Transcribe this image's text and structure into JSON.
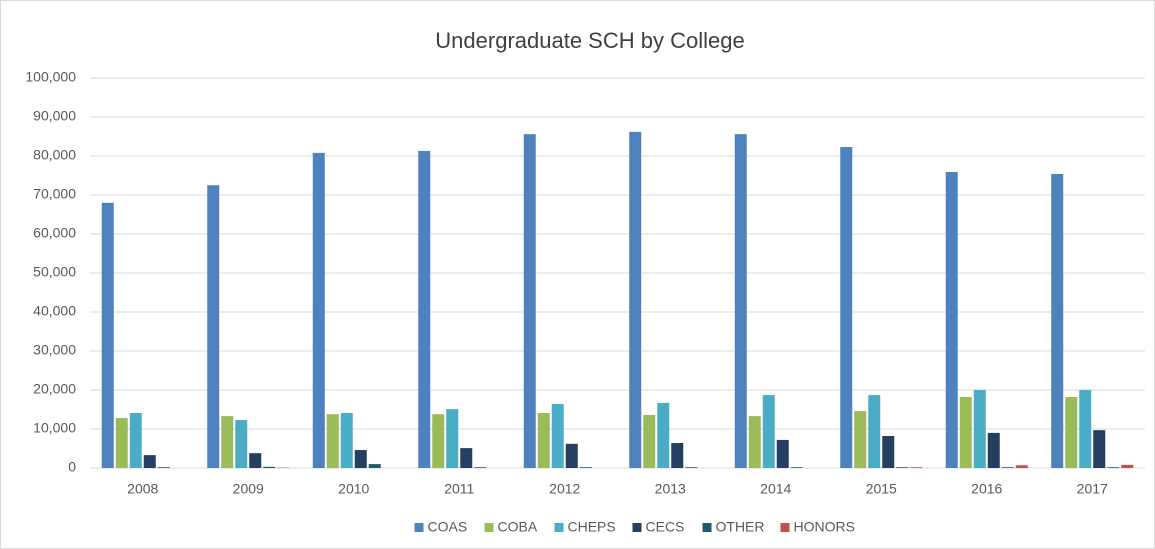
{
  "chart_data": {
    "type": "bar",
    "title": "Undergraduate SCH by College",
    "categories": [
      "2008",
      "2009",
      "2010",
      "2011",
      "2012",
      "2013",
      "2014",
      "2015",
      "2016",
      "2017"
    ],
    "series": [
      {
        "name": "COAS",
        "color": "#4f81bd",
        "values": [
          68000,
          72500,
          80800,
          81300,
          85600,
          86200,
          85600,
          82300,
          75900,
          75400
        ]
      },
      {
        "name": "COBA",
        "color": "#9bbb59",
        "values": [
          12800,
          13300,
          13800,
          13800,
          14100,
          13600,
          13300,
          14600,
          18200,
          18200
        ]
      },
      {
        "name": "CHEPS",
        "color": "#4bacc6",
        "values": [
          14100,
          12300,
          14100,
          15100,
          16400,
          16700,
          18700,
          18700,
          20000,
          20000
        ]
      },
      {
        "name": "CECS",
        "color": "#243f60",
        "values": [
          3300,
          3800,
          4600,
          5100,
          6200,
          6400,
          7200,
          8200,
          9000,
          9700
        ]
      },
      {
        "name": "OTHER",
        "color": "#215968",
        "values": [
          200,
          300,
          1000,
          200,
          200,
          200,
          200,
          200,
          200,
          200
        ]
      },
      {
        "name": "HONORS",
        "color": "#c0504d",
        "values": [
          0,
          100,
          0,
          0,
          0,
          0,
          0,
          200,
          700,
          800
        ]
      }
    ],
    "ylim": [
      0,
      100000
    ],
    "yticks": [
      0,
      {
        "value": 10000,
        "label": "10,000"
      },
      {
        "value": 20000,
        "label": "20,000"
      },
      {
        "value": 30000,
        "label": "30,000"
      },
      {
        "value": 40000,
        "label": "40,000"
      },
      {
        "value": 50000,
        "label": "50,000"
      },
      {
        "value": 60000,
        "label": "60,000"
      },
      {
        "value": 70000,
        "label": "70,000"
      },
      {
        "value": 80000,
        "label": "80,000"
      },
      {
        "value": 90000,
        "label": "90,000"
      },
      {
        "value": 100000,
        "label": "100,000"
      }
    ],
    "grid": true,
    "legend": "bottom"
  }
}
